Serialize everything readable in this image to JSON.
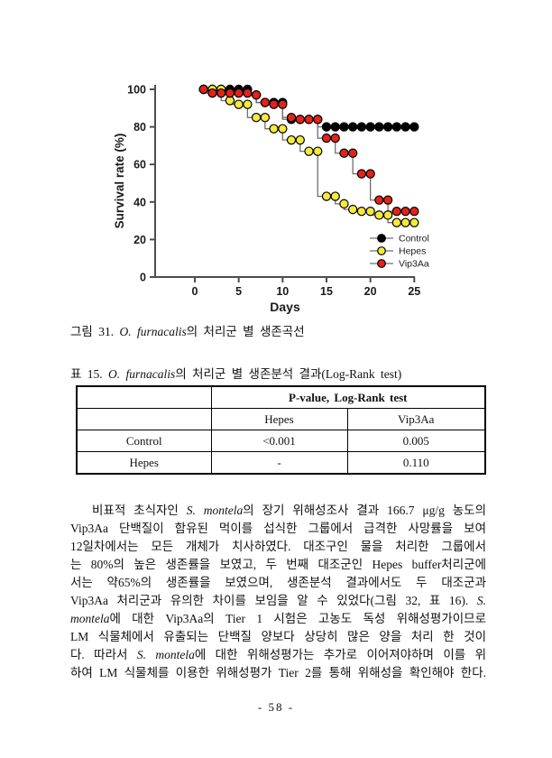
{
  "page": {
    "page_number": "- 58 -"
  },
  "figure_caption": {
    "segments": [
      {
        "text": "그림 31. ",
        "italic": false
      },
      {
        "text": "O. furnacalis",
        "italic": true
      },
      {
        "text": "의 처리군 별 생존곡선",
        "italic": false
      }
    ]
  },
  "table_caption": {
    "segments": [
      {
        "text": "표 15. ",
        "italic": false
      },
      {
        "text": "O. furnacalis",
        "italic": true
      },
      {
        "text": "의 처리군 별 생존분석 결과(Log-Rank test)",
        "italic": false
      }
    ]
  },
  "table": {
    "header_title": "P-value, Log-Rank test",
    "col_headers": [
      "Hepes",
      "Vip3Aa"
    ],
    "rows": [
      {
        "label": "Control",
        "values": [
          "<0.001",
          "0.005"
        ]
      },
      {
        "label": "Hepes",
        "values": [
          "-",
          "0.110"
        ]
      }
    ]
  },
  "paragraph": {
    "lines": [
      [
        {
          "text": "비표적 초식자인 "
        },
        {
          "text": "S. montela",
          "italic": true
        },
        {
          "text": "의 장기 위해성조사 결과 166.7 μg/g 농도의"
        }
      ],
      [
        {
          "text": "Vip3Aa 단백질이 함유된 먹이를 섭식한 그룹에서 급격한 사망률을 보여"
        }
      ],
      [
        {
          "text": "12일차에서는 모든 개체가 치사하였다. 대조구인 물을 처리한 그룹에서"
        }
      ],
      [
        {
          "text": "는 80%의 높은 생존률을 보였고, 두 번째 대조군인 Hepes buffer처리군에"
        }
      ],
      [
        {
          "text": "서는 약65%의 생존률을 보였으며, 생존분석 결과에서도 두 대조군과"
        }
      ],
      [
        {
          "text": "Vip3Aa 처리군과 유의한 차이를 보임을 알 수 있었다(그림 32, 표 16). "
        },
        {
          "text": "S.",
          "italic": true
        }
      ],
      [
        {
          "text": "montela",
          "italic": true
        },
        {
          "text": "에 대한 Vip3Aa의 Tier 1 시험은 고농도 독성 위해성평가이므로"
        }
      ],
      [
        {
          "text": "LM 식물체에서 유출되는 단백질 양보다 상당히 많은 양을 처리 한 것이"
        }
      ],
      [
        {
          "text": "다. 따라서 "
        },
        {
          "text": "S. montela",
          "italic": true
        },
        {
          "text": "에 대한 위해성평가는 추가로 이어져야하며 이를 위"
        }
      ],
      [
        {
          "text": "하여 LM 식물체를 이용한 위해성평가 Tier 2를 통해 위해성을 확인해야 한다."
        }
      ]
    ]
  },
  "chart_data": {
    "type": "line",
    "style": "kaplan-meier-step",
    "title": "",
    "xlabel": "Days",
    "ylabel": "Survival rate (%)",
    "xlim": [
      -4.5,
      25.5
    ],
    "ylim": [
      0,
      102
    ],
    "xticks": [
      0,
      5,
      10,
      15,
      20,
      25
    ],
    "yticks": [
      0,
      20,
      40,
      60,
      80,
      100
    ],
    "grid": false,
    "x": [
      1,
      2,
      3,
      4,
      5,
      6,
      7,
      8,
      9,
      10,
      11,
      12,
      13,
      14,
      15,
      16,
      17,
      18,
      19,
      20,
      21,
      22,
      23,
      24,
      25
    ],
    "series": [
      {
        "name": "Control",
        "color": "#000000",
        "values": [
          100,
          100,
          100,
          100,
          100,
          100,
          97,
          93,
          93,
          93,
          84,
          84,
          84,
          84,
          80,
          80,
          80,
          80,
          80,
          80,
          80,
          80,
          80,
          80,
          80
        ]
      },
      {
        "name": "Hepes",
        "color": "#f5e93d",
        "values": [
          100,
          100,
          100,
          94,
          92,
          92,
          85,
          85,
          79,
          79,
          73,
          73,
          67,
          67,
          43,
          43,
          39,
          36,
          35,
          35,
          33,
          33,
          29,
          29,
          29
        ]
      },
      {
        "name": "Vip3Aa",
        "color": "#e2231a",
        "values": [
          100,
          98,
          98,
          98,
          98,
          98,
          97,
          93,
          92,
          92,
          85,
          84,
          84,
          84,
          74,
          74,
          66,
          66,
          55,
          55,
          41,
          41,
          35,
          35,
          35
        ]
      }
    ],
    "legend": {
      "position": "lower right",
      "entries": [
        "Control",
        "Hepes",
        "Vip3Aa"
      ]
    },
    "line_color": "#6f6f6f",
    "marker_edge_color": "#000000",
    "axis_color": "#4d4d4f"
  }
}
